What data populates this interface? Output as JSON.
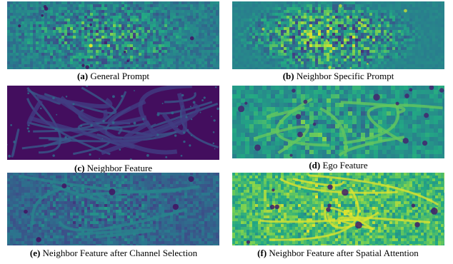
{
  "figure": {
    "panels": [
      {
        "id": "a",
        "tag": "(a)",
        "caption": "General Prompt",
        "colormap": "viridis",
        "style": "noise-teal"
      },
      {
        "id": "b",
        "tag": "(b)",
        "caption": "Neighbor Specific Prompt",
        "colormap": "viridis",
        "style": "noise-teal-sparse"
      },
      {
        "id": "c",
        "tag": "(c)",
        "caption": "Neighbor Feature",
        "colormap": "viridis",
        "style": "purple-roads"
      },
      {
        "id": "d",
        "tag": "(d)",
        "caption": "Ego Feature",
        "colormap": "viridis",
        "style": "teal-green-blobs"
      },
      {
        "id": "e",
        "tag": "(e)",
        "caption": "Neighbor Feature after Channel Selection",
        "colormap": "viridis",
        "style": "blue-teal-map"
      },
      {
        "id": "f",
        "tag": "(f)",
        "caption": "Neighbor Feature after Spatial Attention",
        "colormap": "viridis",
        "style": "green-yellow-map"
      }
    ]
  }
}
